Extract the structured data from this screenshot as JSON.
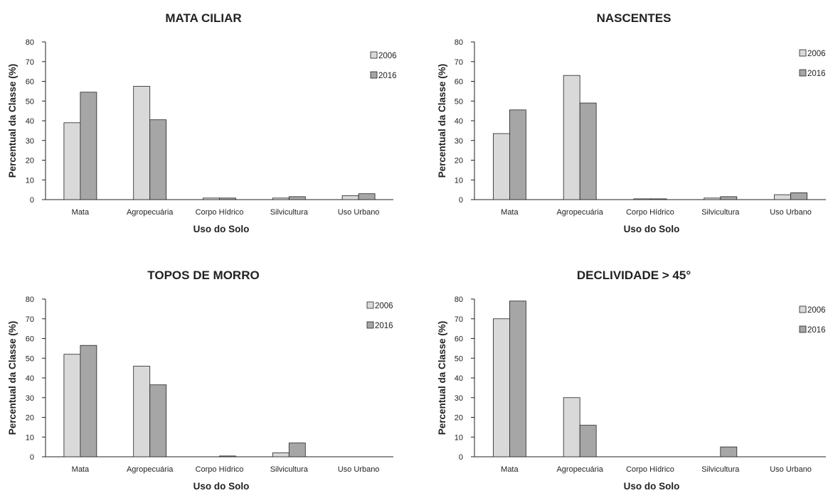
{
  "colors": {
    "2006": "#d9d9d9",
    "2016": "#a6a6a6",
    "bar_stroke": "#222222"
  },
  "chart_data": [
    {
      "type": "bar",
      "title": "MATA CILIAR",
      "xlabel": "Uso do Solo",
      "ylabel": "Percentual da Classe (%)",
      "ylim": [
        0,
        80
      ],
      "yticks": [
        0,
        10,
        20,
        30,
        40,
        50,
        60,
        70,
        80
      ],
      "categories": [
        "Mata",
        "Agropecuária",
        "Corpo Hídrico",
        "Silvicultura",
        "Uso Urbano"
      ],
      "series": [
        {
          "name": "2006",
          "values": [
            39,
            57.5,
            0.8,
            0.8,
            2
          ]
        },
        {
          "name": "2016",
          "values": [
            54.5,
            40.5,
            0.8,
            1.5,
            3
          ]
        }
      ],
      "legend": "top-right",
      "grid": false
    },
    {
      "type": "bar",
      "title": "NASCENTES",
      "xlabel": "Uso do Solo",
      "ylabel": "Percentual da Classe (%)",
      "ylim": [
        0,
        80
      ],
      "yticks": [
        0,
        10,
        20,
        30,
        40,
        50,
        60,
        70,
        80
      ],
      "categories": [
        "Mata",
        "Agropecuária",
        "Corpo Hídrico",
        "Silvicultura",
        "Uso Urbano"
      ],
      "series": [
        {
          "name": "2006",
          "values": [
            33.5,
            63,
            0.4,
            0.8,
            2.5
          ]
        },
        {
          "name": "2016",
          "values": [
            45.5,
            49,
            0.4,
            1.5,
            3.5
          ]
        }
      ],
      "legend": "top-right",
      "grid": false
    },
    {
      "type": "bar",
      "title": "TOPOS DE MORRO",
      "xlabel": "Uso do Solo",
      "ylabel": "Percentual da Classe (%)",
      "ylim": [
        0,
        80
      ],
      "yticks": [
        0,
        10,
        20,
        30,
        40,
        50,
        60,
        70,
        80
      ],
      "categories": [
        "Mata",
        "Agropecuária",
        "Corpo Hídrico",
        "Silvicultura",
        "Uso Urbano"
      ],
      "series": [
        {
          "name": "2006",
          "values": [
            52,
            46,
            0,
            2,
            0
          ]
        },
        {
          "name": "2016",
          "values": [
            56.5,
            36.5,
            0.4,
            7,
            0
          ]
        }
      ],
      "legend": "top-right",
      "grid": false
    },
    {
      "type": "bar",
      "title": "DECLIVIDADE > 45°",
      "xlabel": "Uso do Solo",
      "ylabel": "Percentual da Classe (%)",
      "ylim": [
        0,
        80
      ],
      "yticks": [
        0,
        10,
        20,
        30,
        40,
        50,
        60,
        70,
        80
      ],
      "categories": [
        "Mata",
        "Agropecuária",
        "Corpo Hídrico",
        "Silvicultura",
        "Uso Urbano"
      ],
      "series": [
        {
          "name": "2006",
          "values": [
            70,
            30,
            0,
            0,
            0
          ]
        },
        {
          "name": "2016",
          "values": [
            79,
            16,
            0,
            5,
            0
          ]
        }
      ],
      "legend": "top-right",
      "grid": false
    }
  ]
}
